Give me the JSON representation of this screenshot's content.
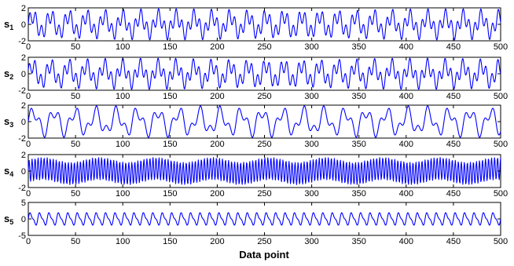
{
  "chart_data": {
    "type": "line",
    "xlabel": "Data point",
    "xlim": [
      0,
      500
    ],
    "x_ticks": [
      "0",
      "50",
      "100",
      "150",
      "200",
      "250",
      "300",
      "350",
      "400",
      "450",
      "500"
    ],
    "series_color": "#0000ff",
    "grid": false,
    "legend": "none",
    "panels": [
      {
        "ylabel_main": "s",
        "ylabel_sub": "1",
        "ylim": [
          -2,
          2
        ],
        "y_ticks": [
          "-2",
          "0",
          "2"
        ],
        "components": [
          {
            "amp": 1.0,
            "period": 19
          },
          {
            "amp": 0.9,
            "period": 6.2
          }
        ]
      },
      {
        "ylabel_main": "s",
        "ylabel_sub": "2",
        "ylim": [
          -2,
          2
        ],
        "y_ticks": [
          "-2",
          "0",
          "2"
        ],
        "components": [
          {
            "amp": 1.0,
            "period": 19
          },
          {
            "amp": 0.9,
            "period": 6.2,
            "phase": 0.6
          }
        ]
      },
      {
        "ylabel_main": "s",
        "ylabel_sub": "3",
        "ylim": [
          -2,
          2
        ],
        "y_ticks": [
          "-2",
          "0",
          "2"
        ],
        "components": [
          {
            "amp": 1.2,
            "period": 22
          },
          {
            "amp": 0.75,
            "period": 10
          }
        ]
      },
      {
        "ylabel_main": "s",
        "ylabel_sub": "4",
        "ylim": [
          -2,
          2
        ],
        "y_ticks": [
          "-2",
          "0",
          "2"
        ],
        "components": [
          {
            "amp": 1.35,
            "period": 3.2
          },
          {
            "amp": 0.3,
            "period": 60
          }
        ]
      },
      {
        "ylabel_main": "s",
        "ylabel_sub": "5",
        "ylim": [
          -5,
          5
        ],
        "y_ticks": [
          "-5",
          "0",
          "5"
        ],
        "components": [
          {
            "amp": 1.6,
            "period": 10
          },
          {
            "amp": 0.6,
            "period": 5
          }
        ]
      }
    ]
  }
}
